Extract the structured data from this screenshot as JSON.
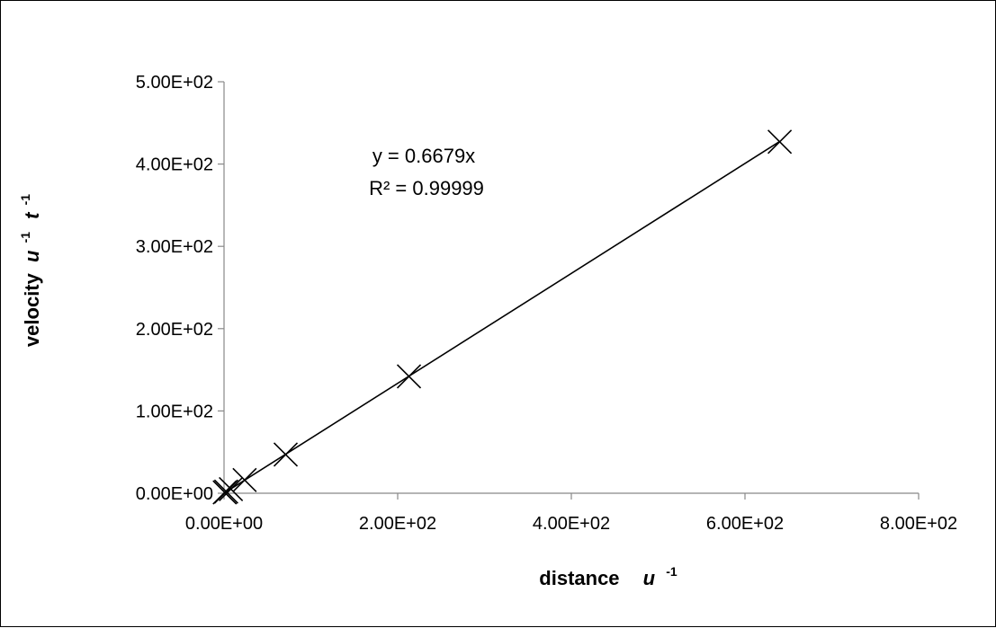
{
  "chart_data": {
    "type": "scatter",
    "xlabel": {
      "main": "distance",
      "unit": "u",
      "unit_sup": "-1"
    },
    "ylabel": {
      "main": "velocity",
      "unit1": "u",
      "unit1_sup": "-1",
      "unit2": "t",
      "unit2_sup": "-1"
    },
    "xlim": [
      0,
      800
    ],
    "ylim": [
      0,
      500
    ],
    "x_ticks": [
      {
        "value": 0,
        "label": "0.00E+00"
      },
      {
        "value": 200,
        "label": "2.00E+02"
      },
      {
        "value": 400,
        "label": "4.00E+02"
      },
      {
        "value": 600,
        "label": "6.00E+02"
      },
      {
        "value": 800,
        "label": "8.00E+02"
      }
    ],
    "y_ticks": [
      {
        "value": 0,
        "label": "0.00E+00"
      },
      {
        "value": 100,
        "label": "1.00E+02"
      },
      {
        "value": 200,
        "label": "2.00E+02"
      },
      {
        "value": 300,
        "label": "3.00E+02"
      },
      {
        "value": 400,
        "label": "4.00E+02"
      },
      {
        "value": 500,
        "label": "5.00E+02"
      }
    ],
    "grid": false,
    "marker": "x",
    "series": [
      {
        "points": [
          {
            "x": 0.8,
            "y": 1
          },
          {
            "x": 2.5,
            "y": 2
          },
          {
            "x": 7.9,
            "y": 5
          },
          {
            "x": 23.7,
            "y": 16
          },
          {
            "x": 71,
            "y": 47
          },
          {
            "x": 213,
            "y": 142
          },
          {
            "x": 640,
            "y": 427
          }
        ],
        "color": "#000000"
      }
    ],
    "trendline": {
      "slope": 0.6679,
      "intercept": 0,
      "x_range": [
        0,
        640
      ],
      "equation": "y = 0.6679x",
      "r_squared": "R² = 0.99999",
      "color": "#000000"
    }
  }
}
